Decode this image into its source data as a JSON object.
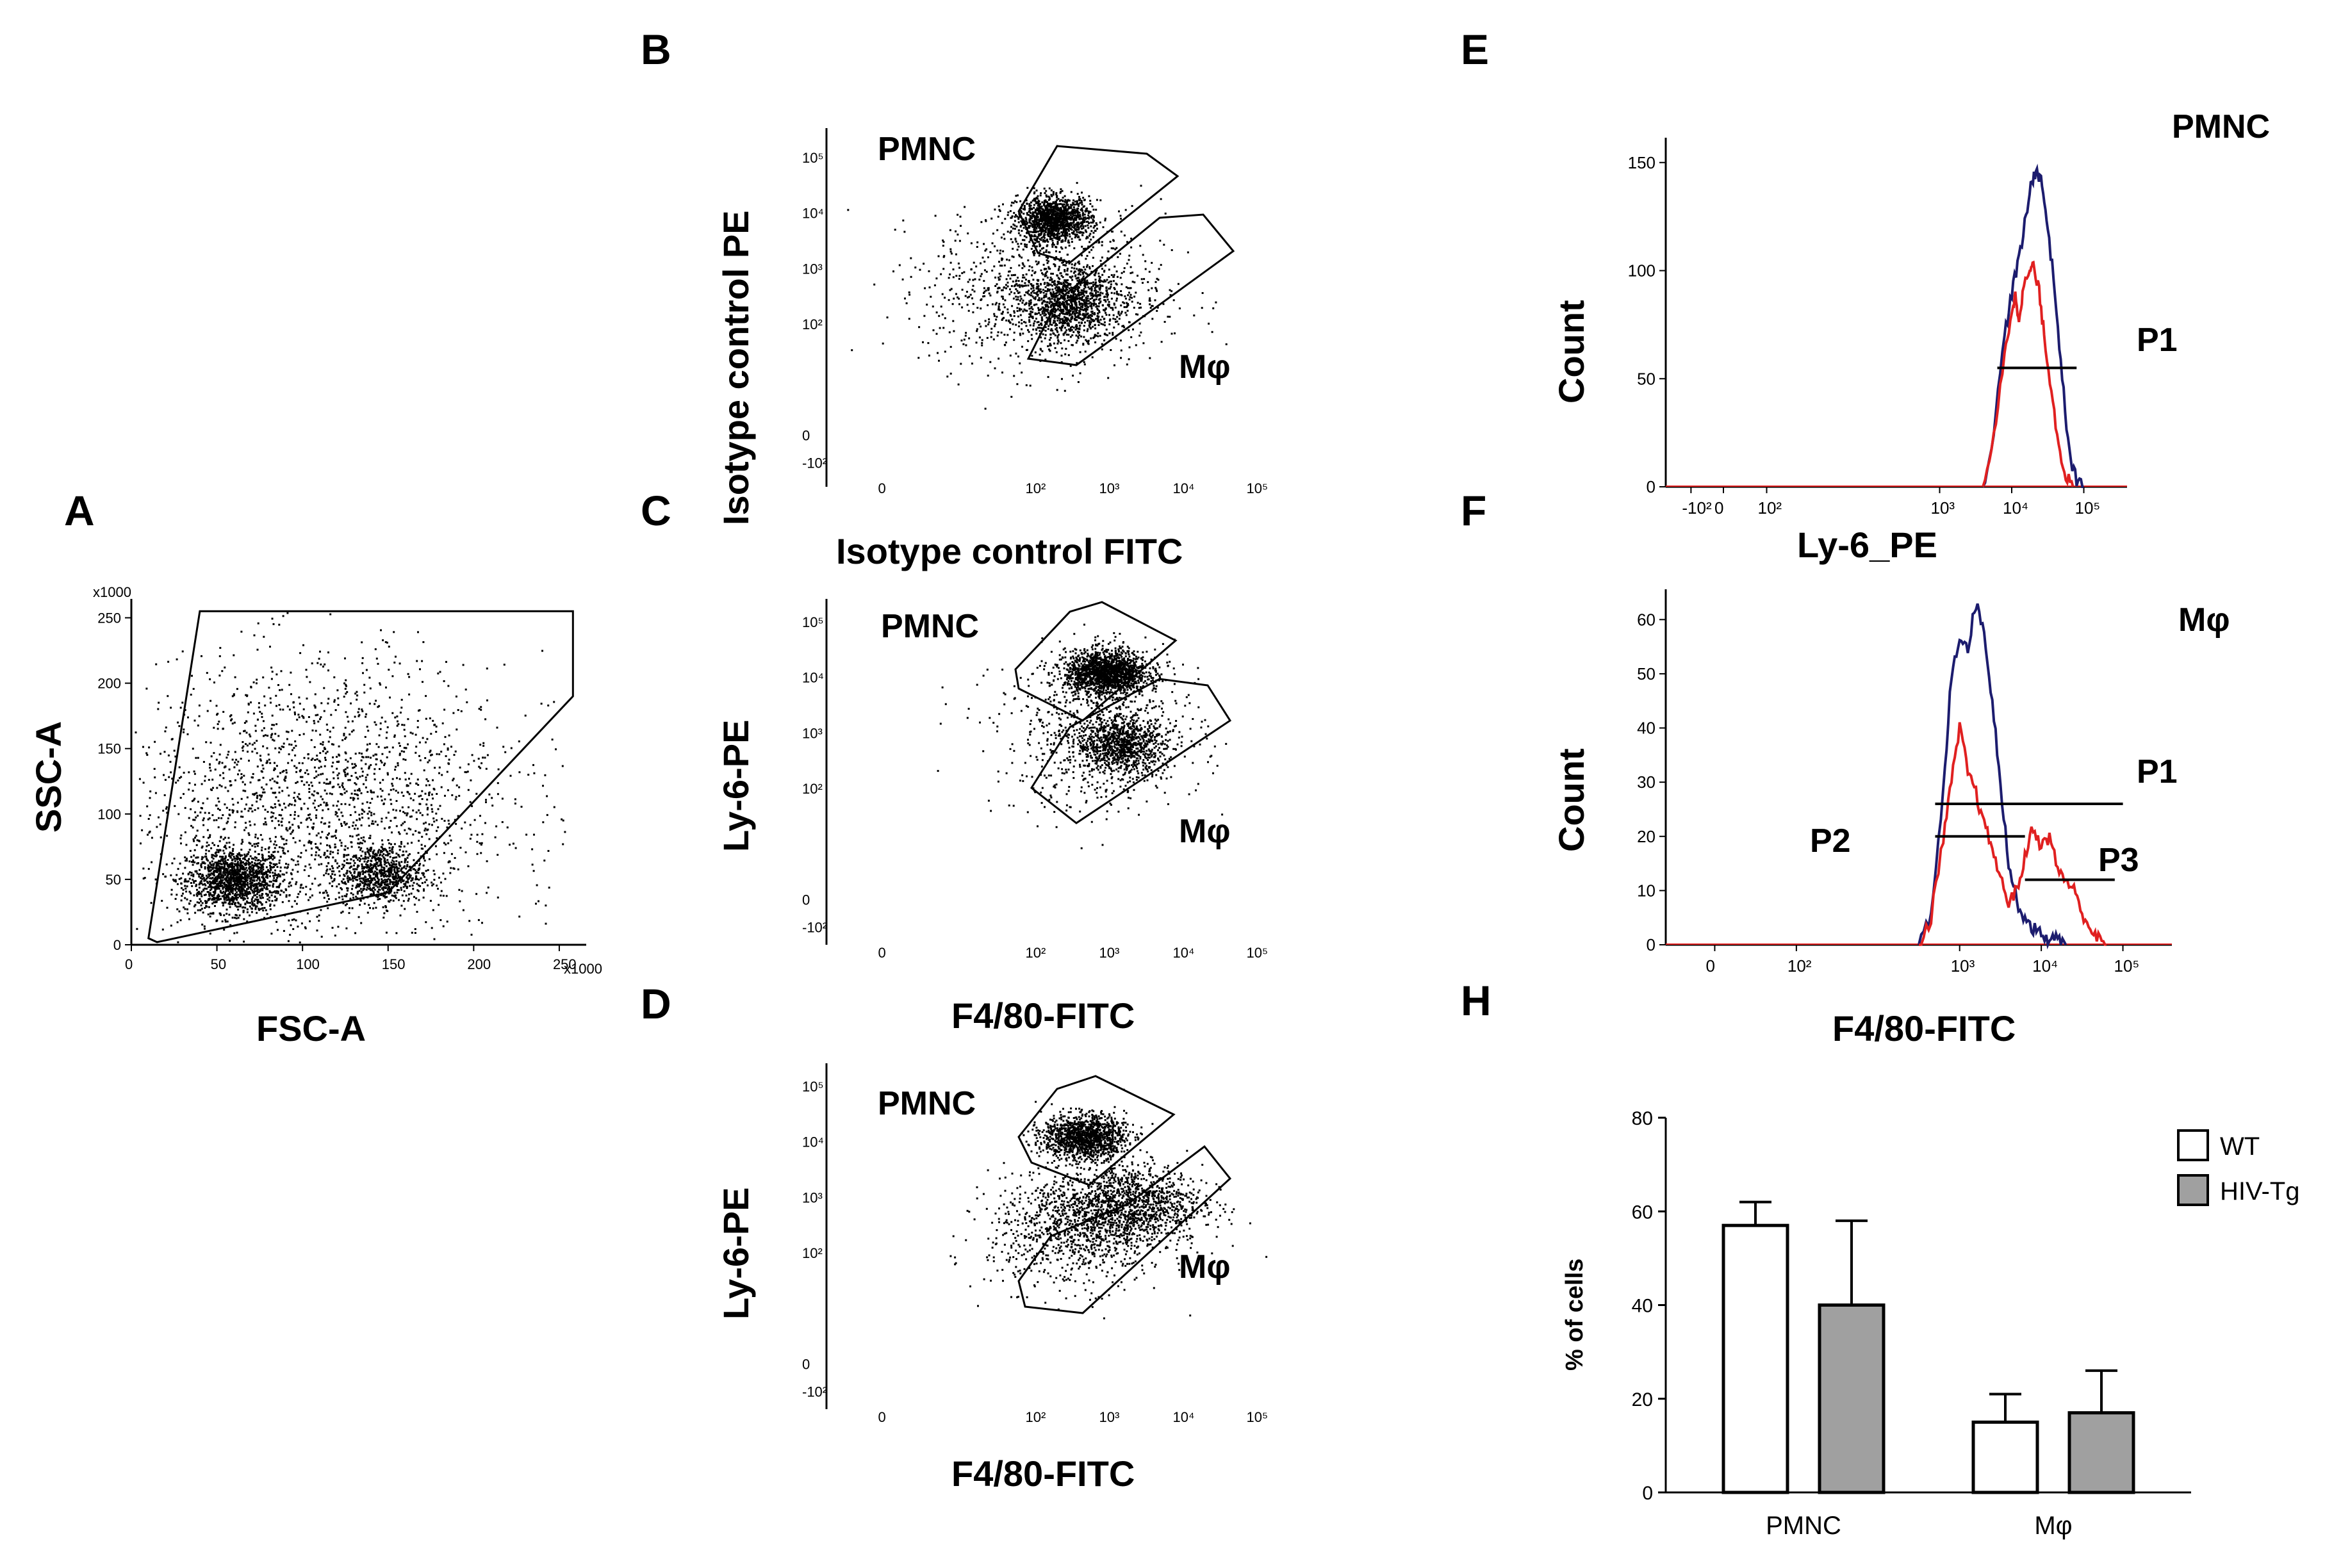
{
  "chart_data": [
    {
      "panel": "A",
      "type": "scatter",
      "xlabel": "FSC-A",
      "ylabel": "SSC-A",
      "scale_label": "x1000",
      "xlim": [
        0,
        262
      ],
      "ylim": [
        0,
        262
      ],
      "xticks": [
        "0",
        "50",
        "100",
        "150",
        "200",
        "250"
      ],
      "yticks": [
        "0",
        "50",
        "100",
        "150",
        "200",
        "250"
      ],
      "clusters": [
        {
          "center": [
            60,
            50
          ],
          "spread": [
            14,
            12
          ],
          "n": 1400
        },
        {
          "center": [
            145,
            55
          ],
          "spread": [
            12,
            11
          ],
          "n": 700
        },
        {
          "center": [
            110,
            110
          ],
          "spread": [
            55,
            55
          ],
          "n": 2000
        }
      ],
      "gate": [
        [
          10,
          5
        ],
        [
          40,
          255
        ],
        [
          258,
          255
        ],
        [
          258,
          190
        ],
        [
          150,
          40
        ],
        [
          15,
          2
        ]
      ]
    },
    {
      "panel": "B",
      "type": "scatter",
      "xlabel": "Isotype control FITC",
      "ylabel": "Isotype control PE",
      "xticks": [
        "0",
        "10²",
        "10³",
        "10⁴",
        "10⁵"
      ],
      "yticks": [
        "-10²",
        "0",
        "10²",
        "10³",
        "10⁴",
        "10⁵"
      ],
      "populations": [
        "PMNC",
        "Mφ"
      ],
      "clusters": [
        {
          "center": [
            2.3,
            3.9
          ],
          "spread": [
            0.25,
            0.2
          ],
          "n": 1300
        },
        {
          "center": [
            2.5,
            2.4
          ],
          "spread": [
            0.3,
            0.3
          ],
          "n": 900
        },
        {
          "center": [
            2.2,
            2.6
          ],
          "spread": [
            0.8,
            0.7
          ],
          "n": 1100
        }
      ]
    },
    {
      "panel": "C",
      "type": "scatter",
      "xlabel": "F4/80-FITC",
      "ylabel": "Ly-6-PE",
      "xticks": [
        "0",
        "10²",
        "10³",
        "10⁴",
        "10⁵"
      ],
      "yticks": [
        "-10²",
        "0",
        "10²",
        "10³",
        "10⁴",
        "10⁵"
      ],
      "populations": [
        "PMNC",
        "Mφ"
      ],
      "clusters": [
        {
          "center": [
            3.0,
            4.1
          ],
          "spread": [
            0.28,
            0.2
          ],
          "n": 1600
        },
        {
          "center": [
            3.2,
            2.8
          ],
          "spread": [
            0.3,
            0.25
          ],
          "n": 900
        },
        {
          "center": [
            2.9,
            3.0
          ],
          "spread": [
            0.7,
            0.7
          ],
          "n": 700
        }
      ]
    },
    {
      "panel": "D",
      "type": "scatter",
      "xlabel": "F4/80-FITC",
      "ylabel": "Ly-6-PE",
      "xticks": [
        "0",
        "10²",
        "10³",
        "10⁴",
        "10⁵"
      ],
      "yticks": [
        "-10²",
        "0",
        "10²",
        "10³",
        "10⁴",
        "10⁵"
      ],
      "populations": [
        "PMNC",
        "Mφ"
      ],
      "clusters": [
        {
          "center": [
            2.7,
            4.1
          ],
          "spread": [
            0.28,
            0.2
          ],
          "n": 1300
        },
        {
          "center": [
            3.3,
            2.9
          ],
          "spread": [
            0.5,
            0.35
          ],
          "n": 1200
        },
        {
          "center": [
            2.6,
            2.4
          ],
          "spread": [
            0.6,
            0.5
          ],
          "n": 900
        }
      ]
    },
    {
      "panel": "E",
      "type": "line",
      "title": "PMNC",
      "xlabel": "Ly-6_PE",
      "ylabel": "Count",
      "xticks": [
        "-10²",
        "0",
        "10²",
        "10³",
        "10⁴",
        "10⁵"
      ],
      "yticks": [
        0,
        50,
        100,
        150
      ],
      "ylim": [
        0,
        160
      ],
      "gates": [
        {
          "name": "P1",
          "from": 3.8,
          "to": 4.9,
          "level": 55
        }
      ],
      "series": [
        {
          "name": "blue",
          "color": "#1c1c6e",
          "x": [
            3.6,
            3.75,
            3.9,
            4.0,
            4.1,
            4.2,
            4.28,
            4.35,
            4.42,
            4.5,
            4.6,
            4.7,
            4.8,
            4.9,
            5.0
          ],
          "y": [
            0,
            25,
            70,
            90,
            105,
            125,
            142,
            147,
            140,
            120,
            90,
            50,
            15,
            3,
            0
          ]
        },
        {
          "name": "red",
          "color": "#e02020",
          "x": [
            3.6,
            3.75,
            3.9,
            4.0,
            4.05,
            4.1,
            4.15,
            4.25,
            4.3,
            4.38,
            4.45,
            4.55,
            4.65,
            4.75,
            4.85
          ],
          "y": [
            0,
            22,
            60,
            82,
            88,
            78,
            90,
            100,
            102,
            90,
            70,
            45,
            20,
            5,
            0
          ]
        }
      ]
    },
    {
      "panel": "F",
      "type": "line",
      "title": "Mφ",
      "xlabel": "F4/80-FITC",
      "ylabel": "Count",
      "xticks": [
        "0",
        "10²",
        "10³",
        "10⁴",
        "10⁵"
      ],
      "yticks": [
        0,
        10,
        20,
        30,
        40,
        50,
        60
      ],
      "ylim": [
        0,
        65
      ],
      "gates": [
        {
          "name": "P1",
          "from": 2.7,
          "to": 5.0,
          "level": 26
        },
        {
          "name": "P2",
          "from": 2.7,
          "to": 3.8,
          "level": 20
        },
        {
          "name": "P3",
          "from": 3.8,
          "to": 4.9,
          "level": 12
        }
      ],
      "series": [
        {
          "name": "blue",
          "color": "#1c1c6e",
          "x": [
            2.5,
            2.65,
            2.8,
            2.9,
            3.0,
            3.1,
            3.2,
            3.3,
            3.4,
            3.5,
            3.6,
            3.7,
            3.8,
            3.9,
            4.0,
            4.1,
            4.2,
            4.3
          ],
          "y": [
            0,
            5,
            28,
            50,
            57,
            55,
            63,
            58,
            45,
            30,
            15,
            8,
            5,
            3,
            2,
            1,
            1,
            0
          ]
        },
        {
          "name": "red",
          "color": "#e02020",
          "x": [
            2.5,
            2.65,
            2.8,
            2.9,
            3.0,
            3.1,
            3.2,
            3.3,
            3.4,
            3.5,
            3.6,
            3.7,
            3.8,
            3.9,
            4.0,
            4.1,
            4.2,
            4.3,
            4.4,
            4.5,
            4.6,
            4.7,
            4.8
          ],
          "y": [
            0,
            5,
            20,
            30,
            40,
            32,
            28,
            22,
            18,
            12,
            8,
            10,
            16,
            22,
            18,
            20,
            14,
            12,
            10,
            6,
            3,
            1,
            0
          ]
        }
      ]
    },
    {
      "panel": "H",
      "type": "bar",
      "ylabel": "% of cells",
      "categories": [
        "PMNC",
        "Mφ"
      ],
      "ylim": [
        0,
        80
      ],
      "yticks": [
        0,
        20,
        40,
        60,
        80
      ],
      "series": [
        {
          "name": "WT",
          "color": "#ffffff",
          "values": [
            57,
            15
          ],
          "errors": [
            5,
            6
          ]
        },
        {
          "name": "HIV-Tg",
          "color": "#a0a0a0",
          "values": [
            40,
            17
          ],
          "errors": [
            18,
            9
          ]
        }
      ]
    }
  ]
}
